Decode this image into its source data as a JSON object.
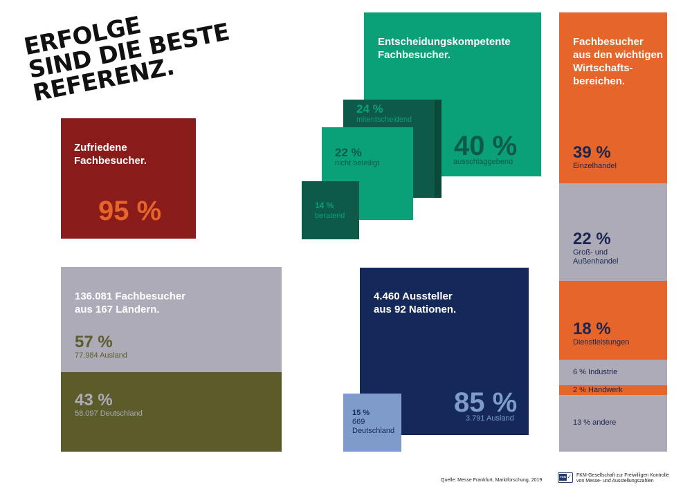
{
  "headline": {
    "line1": "ERFOLGE",
    "line2": "SIND DIE BESTE",
    "line3": "REFERENZ."
  },
  "zufrieden": {
    "title_l1": "Zufriedene",
    "title_l2": "Fachbesucher.",
    "pct": "95 %"
  },
  "entscheidung": {
    "title_l1": "Entscheidungskompetente",
    "title_l2": "Fachbesucher.",
    "main": {
      "pct": "40 %",
      "label": "ausschlaggebend"
    },
    "mit": {
      "pct": "24 %",
      "label": "mitentscheidend"
    },
    "nicht": {
      "pct": "22 %",
      "label": "nicht beteiligt"
    },
    "beratend": {
      "pct": "14 %",
      "label": "beratend"
    }
  },
  "laender": {
    "title_l1": "136.081 Fachbesucher",
    "title_l2": "aus 167 Ländern.",
    "ausland": {
      "pct": "57 %",
      "label": "77.984 Ausland"
    },
    "deutschland": {
      "pct": "43 %",
      "label": "58.097 Deutschland"
    }
  },
  "aussteller": {
    "title_l1": "4.460 Aussteller",
    "title_l2": "aus 92 Nationen.",
    "ausland": {
      "pct": "85 %",
      "label": "3.791 Ausland"
    },
    "deutschland": {
      "pct": "15 %",
      "count": "669",
      "label": "Deutschland"
    }
  },
  "bereiche": {
    "title_l1": "Fachbesucher",
    "title_l2": "aus den wichtigen",
    "title_l3": "Wirtschafts-",
    "title_l4": "bereichen.",
    "einzel": {
      "pct": "39 %",
      "label": "Einzelhandel"
    },
    "gross": {
      "pct": "22 %",
      "label_l1": "Groß- und",
      "label_l2": "Außenhandel"
    },
    "dienst": {
      "pct": "18 %",
      "label": "Dienstleistungen"
    },
    "industrie": "6 % Industrie",
    "handwerk": "2 % Handwerk",
    "andere": "13 % andere"
  },
  "footer": {
    "source": "Quelle: Messe Frankfurt, Marktforschung, 2019",
    "fkm_l1": "FKM-Gesellschaft zur Freiwilligen Kontrolle",
    "fkm_l2": "von Messe- und Ausstellungszahlen",
    "logo_text": "FKM"
  },
  "colors": {
    "red": "#8a1b1b",
    "green": "#0aa078",
    "dark_green": "#0d5a48",
    "grey": "#aeabb8",
    "olive": "#5c5c2a",
    "navy": "#14285a",
    "light_blue": "#7e9bc9",
    "orange": "#e5652a"
  },
  "icons": {
    "fkm_logo": "fkm-check-logo"
  }
}
